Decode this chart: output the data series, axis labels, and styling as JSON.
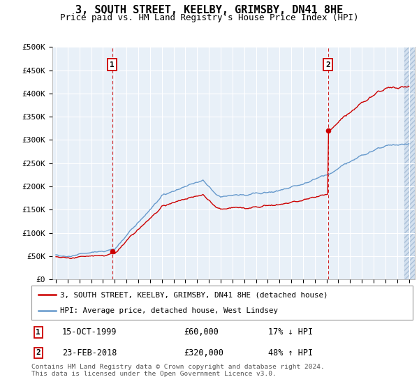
{
  "title": "3, SOUTH STREET, KEELBY, GRIMSBY, DN41 8HE",
  "subtitle": "Price paid vs. HM Land Registry's House Price Index (HPI)",
  "title_fontsize": 11,
  "subtitle_fontsize": 9,
  "ylim": [
    0,
    500000
  ],
  "yticks": [
    0,
    50000,
    100000,
    150000,
    200000,
    250000,
    300000,
    350000,
    400000,
    450000,
    500000
  ],
  "ytick_labels": [
    "£0",
    "£50K",
    "£100K",
    "£150K",
    "£200K",
    "£250K",
    "£300K",
    "£350K",
    "£400K",
    "£450K",
    "£500K"
  ],
  "sale1_year": 1999.79,
  "sale1_price": 60000,
  "sale2_year": 2018.14,
  "sale2_price": 320000,
  "sale_color": "#cc0000",
  "hpi_color": "#6699cc",
  "legend_label_red": "3, SOUTH STREET, KEELBY, GRIMSBY, DN41 8HE (detached house)",
  "legend_label_blue": "HPI: Average price, detached house, West Lindsey",
  "annotation1_date": "15-OCT-1999",
  "annotation1_price": "£60,000",
  "annotation1_hpi": "17% ↓ HPI",
  "annotation2_date": "23-FEB-2018",
  "annotation2_price": "£320,000",
  "annotation2_hpi": "48% ↑ HPI",
  "footer": "Contains HM Land Registry data © Crown copyright and database right 2024.\nThis data is licensed under the Open Government Licence v3.0.",
  "plot_bg": "#e8f0f8",
  "grid_color": "#ffffff",
  "hatch_color": "#c8d8ea"
}
